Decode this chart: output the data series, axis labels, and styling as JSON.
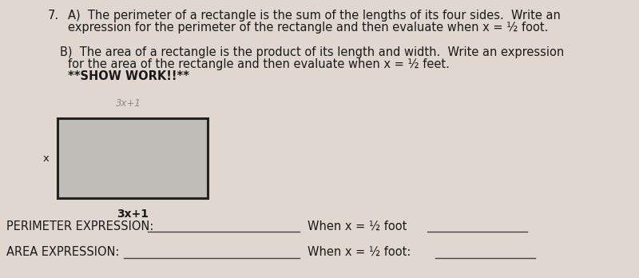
{
  "background_color": "#e0d8d0",
  "paper_color": "#e8e2db",
  "title_number": "7.",
  "part_a_text_line1": "A)  The perimeter of a rectangle is the sum of the lengths of its four sides.  Write an",
  "part_a_text_line2": "expression for the perimeter of the rectangle and then evaluate when x = ½ foot.",
  "part_b_text_line1": "B)  The area of a rectangle is the product of its length and width.  Write an expression",
  "part_b_text_line2": "for the area of the rectangle and then evaluate when x = ½ feet.",
  "part_b_text_line3": "**SHOW WORK!!**",
  "rect_label_bottom": "3x+1",
  "rect_label_left": "x",
  "perimeter_label": "PERIMETER EXPRESSION:",
  "area_label": "AREA EXPRESSION:",
  "when_x_half_foot": "When x = ½ foot",
  "when_x_half_foot2": "When x = ½ foot:",
  "font_size_main": 10.5,
  "font_size_label": 10.5,
  "font_size_rect_label": 9.5,
  "text_color": "#1a1a1a",
  "line_color": "#444444",
  "rect_face_color": "#c0bcb8",
  "rect_edge_color": "#222222"
}
